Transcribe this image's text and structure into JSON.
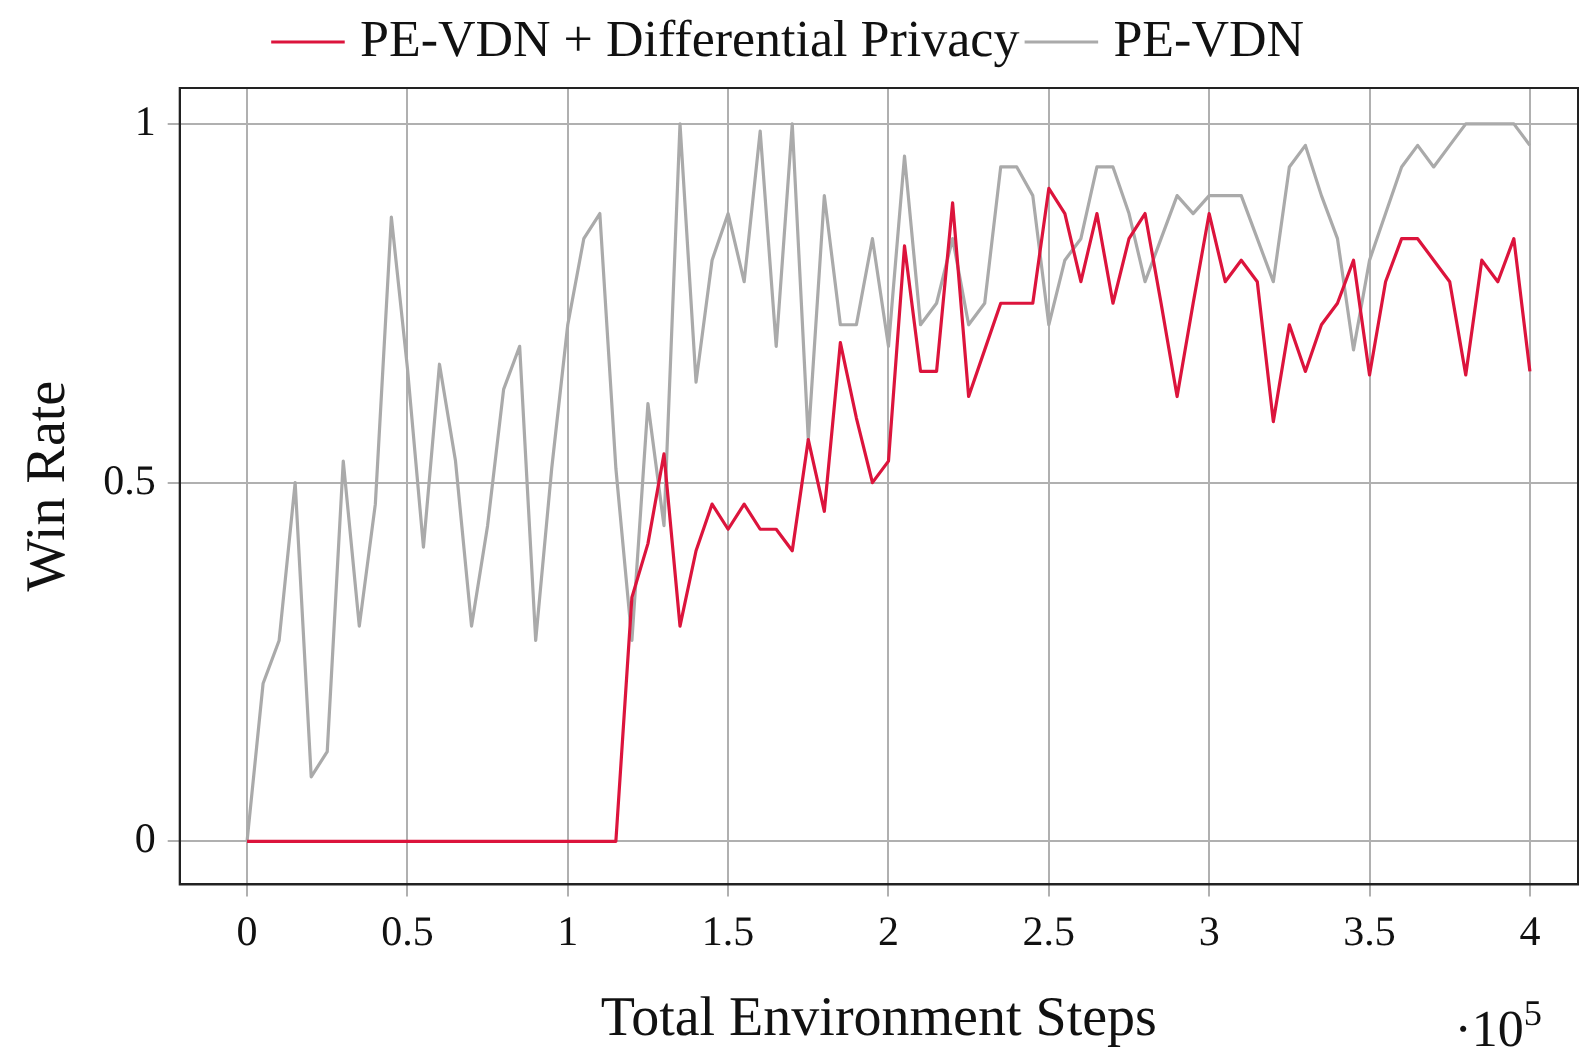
{
  "chart_data": {
    "type": "line",
    "xlabel": "Total Environment Steps",
    "ylabel": "Win Rate",
    "annotations": [
      "·10$^{5}$"
    ],
    "x": [
      0,
      0.05,
      0.1,
      0.15,
      0.2,
      0.25,
      0.3,
      0.35,
      0.4,
      0.45,
      0.5,
      0.55,
      0.6,
      0.65,
      0.7,
      0.75,
      0.8,
      0.85,
      0.9,
      0.95,
      1,
      1.05,
      1.1,
      1.15,
      1.2,
      1.25,
      1.3,
      1.35,
      1.4,
      1.45,
      1.5,
      1.55,
      1.6,
      1.65,
      1.7,
      1.75,
      1.8,
      1.85,
      1.9,
      1.95,
      2,
      2.05,
      2.1,
      2.15,
      2.2,
      2.25,
      2.3,
      2.35,
      2.4,
      2.45,
      2.5,
      2.55,
      2.6,
      2.65,
      2.7,
      2.75,
      2.8,
      2.85,
      2.9,
      2.95,
      3,
      3.05,
      3.1,
      3.15,
      3.2,
      3.25,
      3.3,
      3.35,
      3.4,
      3.45,
      3.5,
      3.55,
      3.6,
      3.65,
      3.7,
      3.75,
      3.8,
      3.85,
      3.9,
      3.95,
      4
    ],
    "series": [
      {
        "name": "PE-VDN + Differential Privacy",
        "color": "#dc143c",
        "values": [
          0,
          0,
          0,
          0,
          0,
          0,
          0,
          0,
          0,
          0,
          0,
          0,
          0,
          0,
          0,
          0,
          0,
          0,
          0,
          0,
          0,
          0,
          0,
          0,
          0.34,
          0.415,
          0.54,
          0.3,
          0.405,
          0.47,
          0.435,
          0.47,
          0.435,
          0.435,
          0.405,
          0.56,
          0.46,
          0.695,
          0.59,
          0.5,
          0.53,
          0.83,
          0.655,
          0.655,
          0.89,
          0.62,
          0.685,
          0.75,
          0.75,
          0.75,
          0.91,
          0.875,
          0.78,
          0.875,
          0.75,
          0.84,
          0.875,
          0.75,
          0.62,
          0.75,
          0.875,
          0.78,
          0.81,
          0.78,
          0.585,
          0.72,
          0.655,
          0.72,
          0.75,
          0.81,
          0.65,
          0.78,
          0.84,
          0.84,
          0.81,
          0.78,
          0.65,
          0.81,
          0.78,
          0.84,
          0.655
        ]
      },
      {
        "name": "PE-VDN",
        "color": "#aaaaaa",
        "values": [
          0,
          0.22,
          0.28,
          0.5,
          0.09,
          0.125,
          0.53,
          0.3,
          0.47,
          0.87,
          0.66,
          0.41,
          0.665,
          0.53,
          0.3,
          0.44,
          0.63,
          0.69,
          0.28,
          0.52,
          0.72,
          0.84,
          0.875,
          0.52,
          0.28,
          0.61,
          0.44,
          1,
          0.64,
          0.81,
          0.875,
          0.78,
          0.99,
          0.69,
          1,
          0.56,
          0.9,
          0.72,
          0.72,
          0.84,
          0.69,
          0.955,
          0.72,
          0.75,
          0.84,
          0.72,
          0.75,
          0.94,
          0.94,
          0.9,
          0.72,
          0.81,
          0.84,
          0.94,
          0.94,
          0.875,
          0.78,
          0.84,
          0.9,
          0.875,
          0.9,
          0.9,
          0.9,
          0.84,
          0.78,
          0.94,
          0.97,
          0.9,
          0.84,
          0.685,
          0.81,
          0.875,
          0.94,
          0.97,
          0.94,
          0.97,
          1,
          1,
          1,
          1,
          0.97
        ]
      }
    ],
    "xlim": [
      -0.21,
      4.15
    ],
    "ylim": [
      -0.06,
      1.05
    ],
    "xticks": [
      0,
      0.5,
      1,
      1.5,
      2,
      2.5,
      3,
      3.5,
      4
    ],
    "yticks": [
      0,
      0.5,
      1
    ],
    "grid": true,
    "legend": "top",
    "marker": "none",
    "line_style": "solid"
  }
}
